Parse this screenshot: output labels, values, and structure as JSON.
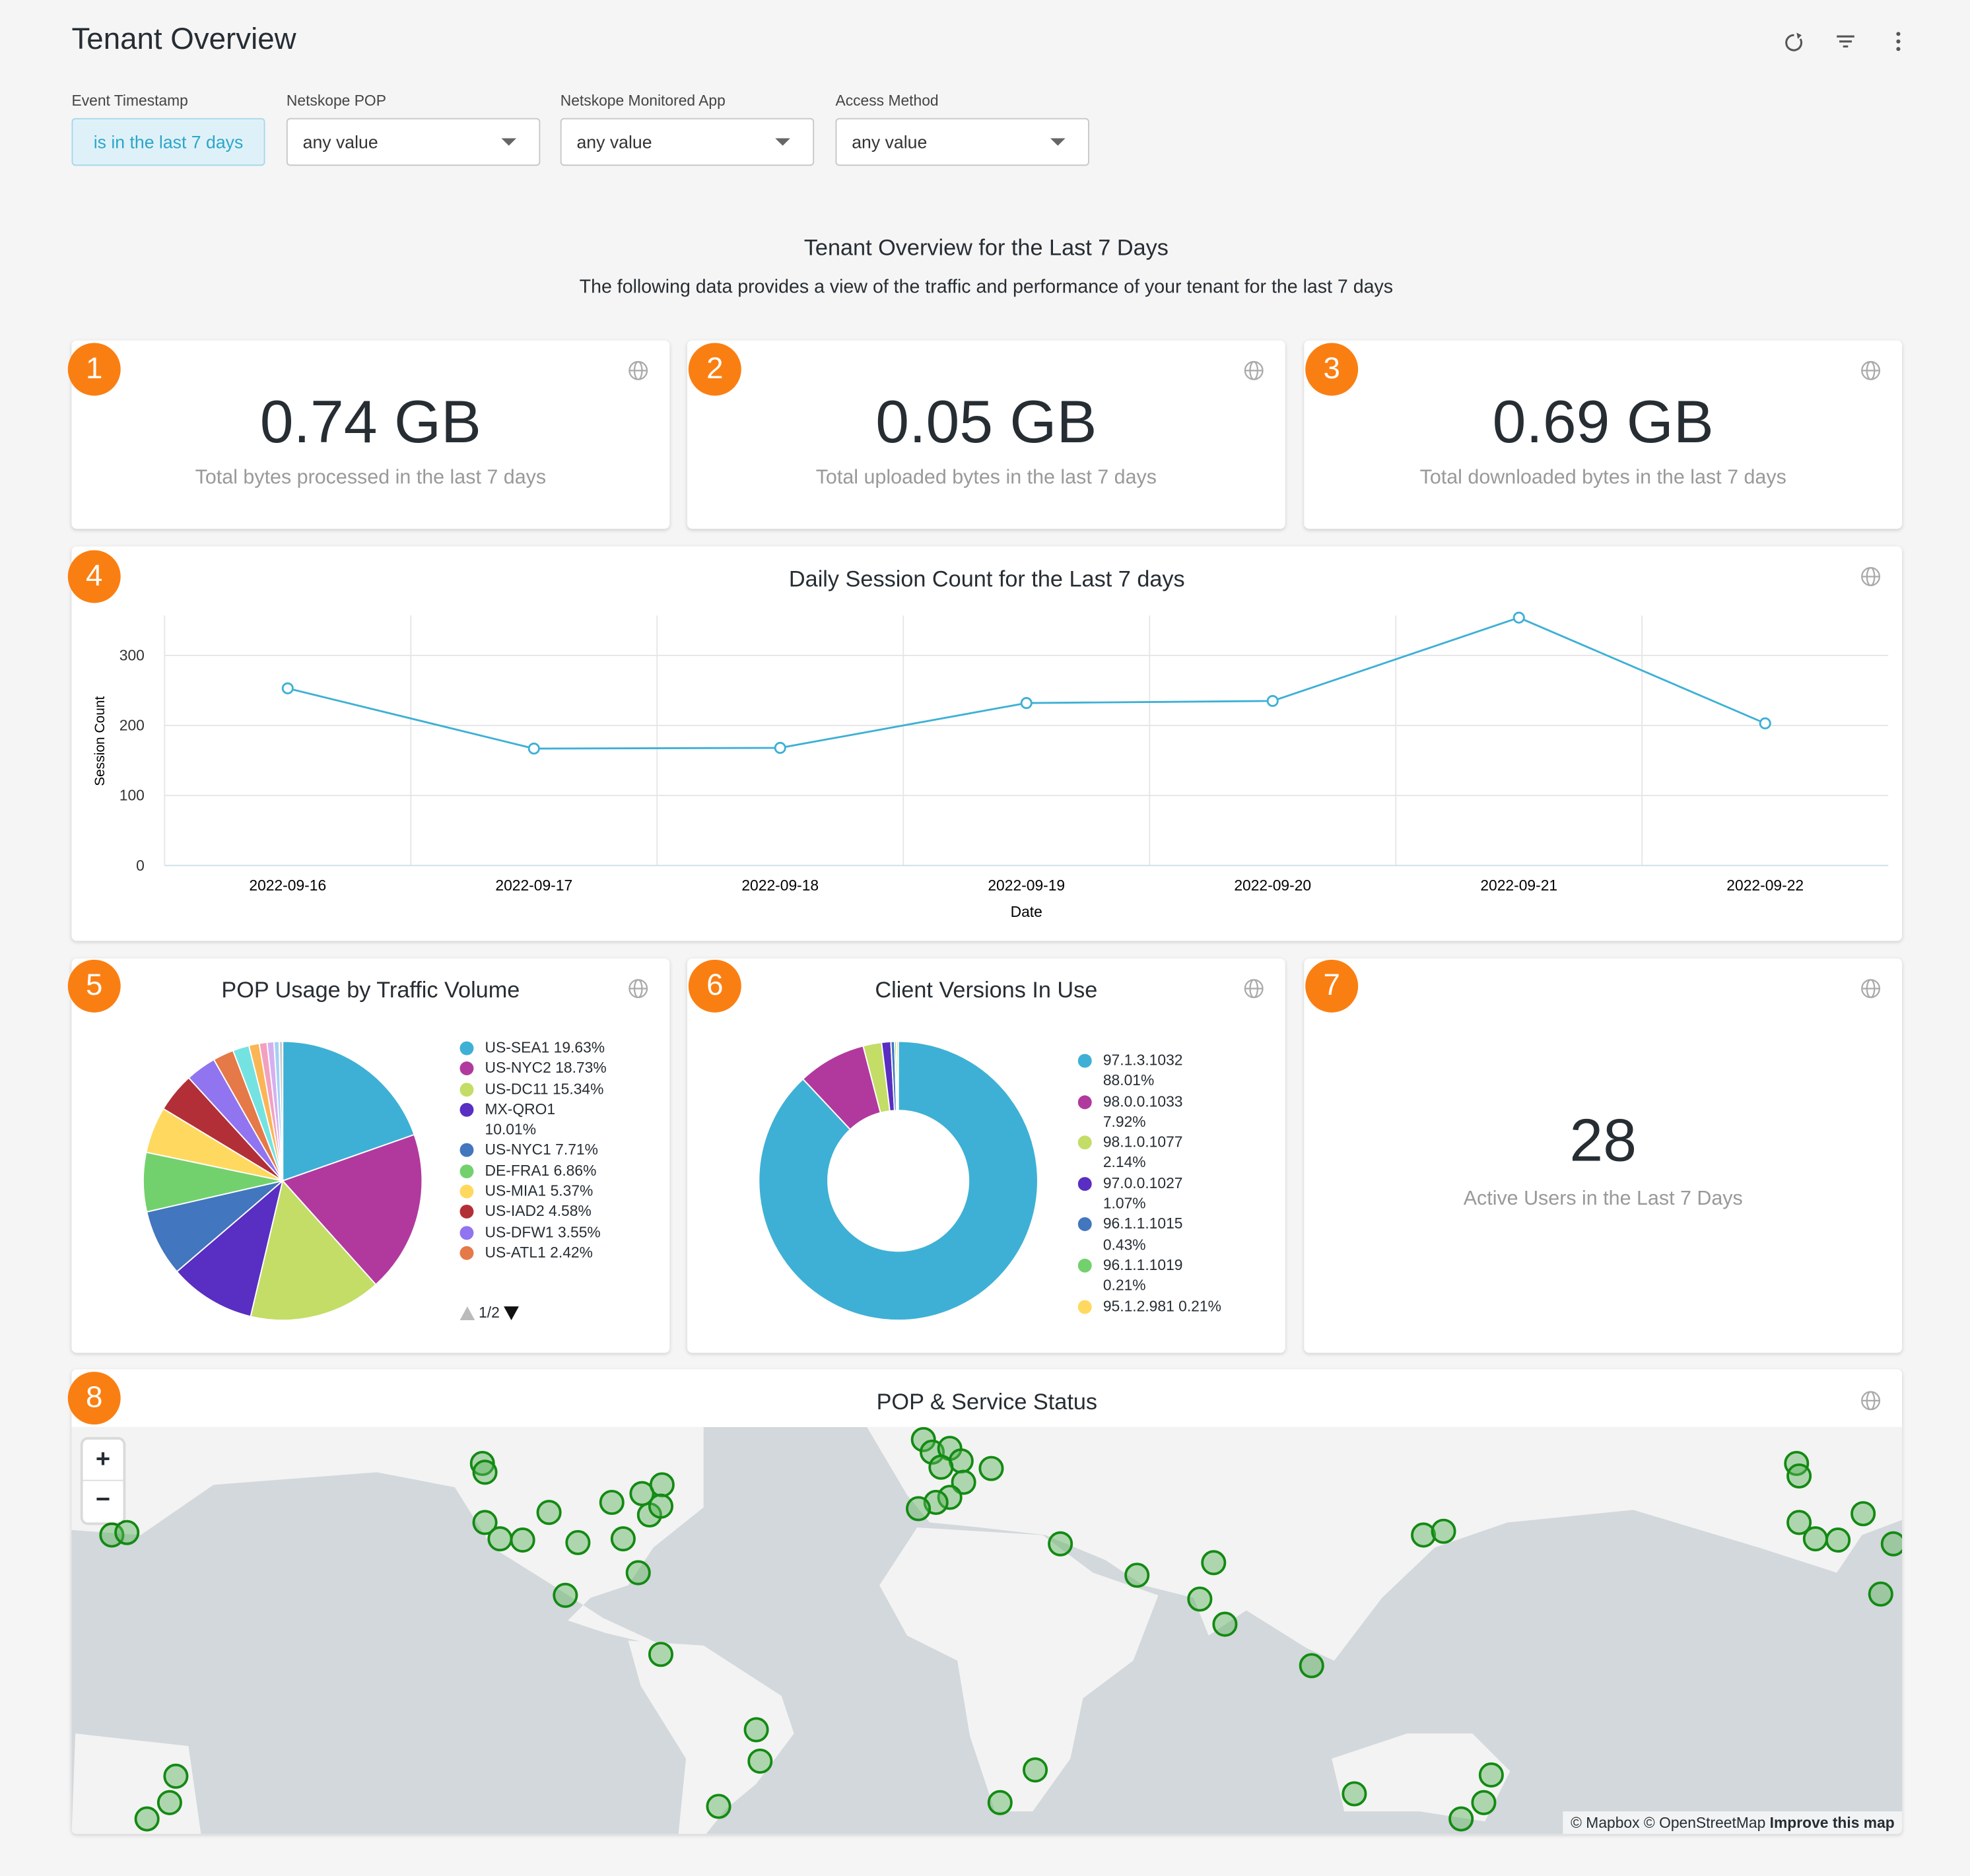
{
  "header": {
    "title": "Tenant Overview"
  },
  "filters": [
    {
      "label": "Event Timestamp",
      "value": "is in the last 7 days"
    },
    {
      "label": "Netskope POP",
      "value": "any value"
    },
    {
      "label": "Netskope Monitored App",
      "value": "any value"
    },
    {
      "label": "Access Method",
      "value": "any value"
    }
  ],
  "intro": {
    "title": "Tenant Overview for the Last 7 Days",
    "text": "The following data provides a view of the traffic and performance of your tenant for the last 7 days"
  },
  "tiles": [
    {
      "badge": "1",
      "value": "0.74 GB",
      "label": "Total bytes processed in the last 7 days"
    },
    {
      "badge": "2",
      "value": "0.05 GB",
      "label": "Total uploaded bytes in the last 7 days"
    },
    {
      "badge": "3",
      "value": "0.69 GB",
      "label": "Total downloaded bytes in the last 7 days"
    },
    {
      "badge": "7",
      "value": "28",
      "label": "Active Users in the Last 7 Days"
    }
  ],
  "chart_data": [
    {
      "type": "line",
      "badge": "4",
      "title": "Daily Session Count for the Last 7 days",
      "x_label": "Date",
      "y_label": "Session Count",
      "categories": [
        "2022-09-16",
        "2022-09-17",
        "2022-09-18",
        "2022-09-19",
        "2022-09-20",
        "2022-09-21",
        "2022-09-22"
      ],
      "values": [
        253,
        167,
        168,
        232,
        235,
        354,
        203
      ],
      "color": "#3eb0d5",
      "ylim": [
        0,
        357
      ],
      "yticks": [
        0,
        100,
        200,
        300
      ],
      "grid": true
    },
    {
      "type": "pie",
      "badge": "5",
      "title": "POP Usage by Traffic Volume",
      "categories": [
        "US-SEA1",
        "US-NYC2",
        "US-DC11",
        "MX-QRO1",
        "US-NYC1",
        "DE-FRA1",
        "US-MIA1",
        "US-IAD2",
        "US-DFW1",
        "US-ATL1",
        null,
        null,
        null,
        null,
        null,
        null
      ],
      "values": [
        19.63,
        18.73,
        15.34,
        10.01,
        7.71,
        6.86,
        5.37,
        4.58,
        3.55,
        2.42,
        1.9,
        1.2,
        0.9,
        0.8,
        0.6,
        0.4
      ],
      "value_labels": [
        "19.63%",
        "18.73%",
        "15.34%",
        "10.01%",
        "7.71%",
        "6.86%",
        "5.37%",
        "4.58%",
        "3.55%",
        "2.42%",
        null,
        null,
        null,
        null,
        null,
        null
      ],
      "colors": [
        "#3eb0d5",
        "#b1399e",
        "#c3dd67",
        "#592ec2",
        "#4276be",
        "#72d16d",
        "#ffd95f",
        "#b32f37",
        "#9174f0",
        "#e57947",
        "#75e2e2",
        "#fbb555",
        "#f3a0c0",
        "#d5b0f0",
        "#a5d0f5",
        "#cccccc"
      ],
      "legend_page": "1/2"
    },
    {
      "type": "donut",
      "badge": "6",
      "title": "Client Versions In Use",
      "categories": [
        "97.1.3.1032",
        "98.0.0.1033",
        "98.1.0.1077",
        "97.0.0.1027",
        "96.1.1.1015",
        "96.1.1.1019",
        "95.1.2.981"
      ],
      "values": [
        88.01,
        7.92,
        2.14,
        1.07,
        0.43,
        0.21,
        0.21
      ],
      "value_labels": [
        "88.01%",
        "7.92%",
        "2.14%",
        "1.07%",
        "0.43%",
        "0.21%",
        "0.21%"
      ],
      "colors": [
        "#3eb0d5",
        "#b1399e",
        "#c3dd67",
        "#592ec2",
        "#4276be",
        "#72d16d",
        "#ffd95f"
      ]
    }
  ],
  "map": {
    "badge": "8",
    "title": "POP & Service Status",
    "zoom_in": "+",
    "zoom_out": "−",
    "attribution": "© Mapbox © OpenStreetMap",
    "link": "Improve this map"
  }
}
